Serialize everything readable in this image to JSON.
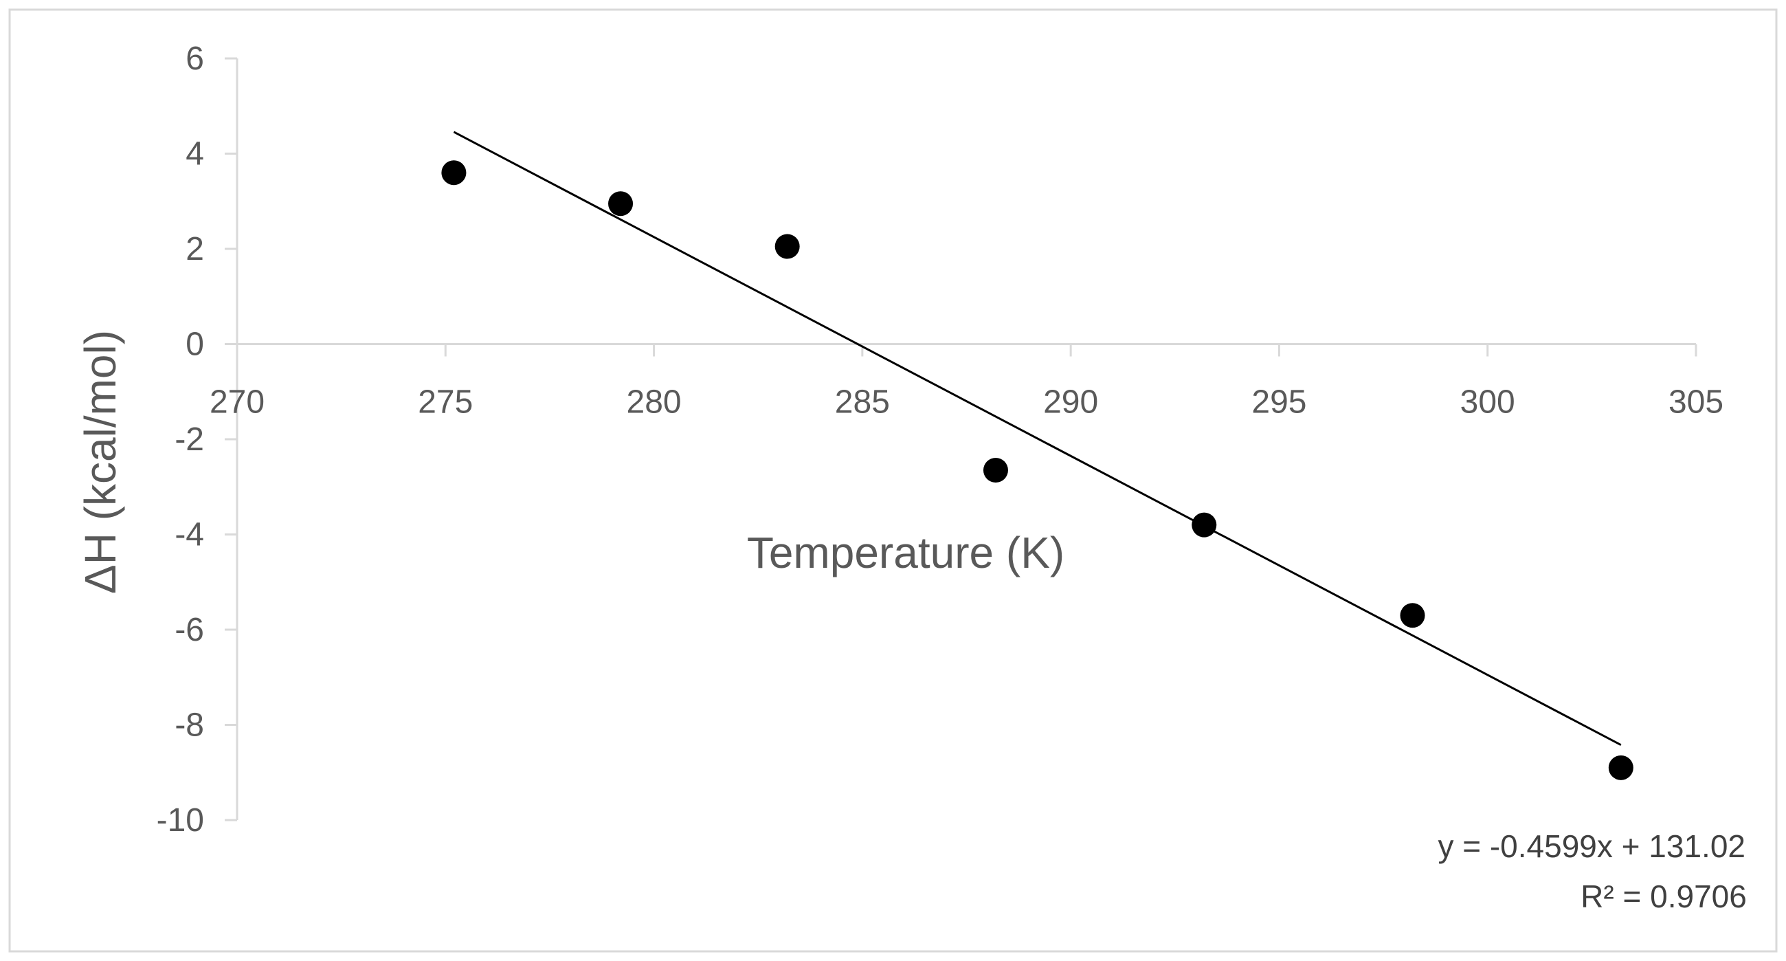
{
  "chart_data": {
    "type": "scatter",
    "title": "",
    "xlabel": "Temperature (K)",
    "ylabel": "ΔH (kcal/mol)",
    "xlim": [
      270,
      305
    ],
    "ylim": [
      -10,
      6
    ],
    "x_ticks": [
      270,
      275,
      280,
      285,
      290,
      295,
      300,
      305
    ],
    "y_ticks": [
      6,
      4,
      2,
      0,
      -2,
      -4,
      -6,
      -8,
      -10
    ],
    "x_tick_labels": [
      "270",
      "275",
      "280",
      "285",
      "290",
      "295",
      "300",
      "305"
    ],
    "y_tick_labels": [
      "6",
      "4",
      "2",
      "0",
      "-2",
      "-4",
      "-6",
      "-8",
      "-10"
    ],
    "grid": false,
    "legend": "none",
    "series": [
      {
        "marker_color": "#000000",
        "x": [
          275.2,
          279.2,
          283.2,
          288.2,
          293.2,
          298.2,
          303.2
        ],
        "y": [
          3.6,
          2.95,
          2.05,
          -2.65,
          -3.8,
          -5.7,
          -8.9
        ]
      }
    ],
    "trendline": {
      "type": "linear",
      "slope": -0.4599,
      "intercept": 131.02,
      "x_range": [
        275.2,
        303.2
      ],
      "color": "#000000",
      "equation_text": "y = -0.4599x + 131.02",
      "r_squared_text": "R² = 0.9706"
    },
    "colors": {
      "axis": "#d9d9d9",
      "tick_text": "#595959",
      "frame": "#d9d9d9"
    }
  }
}
